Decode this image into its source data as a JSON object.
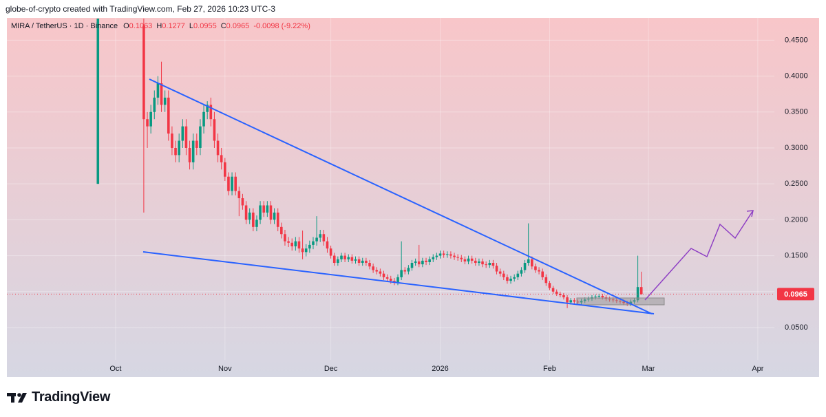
{
  "header": {
    "text": "globe-of-crypto created with TradingView.com, Feb 27, 2026 10:23 UTC-3"
  },
  "footer": {
    "brand": "TradingView"
  },
  "chart_data": {
    "type": "candlestick",
    "symbol": "MIRA / TetherUS · 1D · Binance",
    "legend_keys": [
      "O",
      "H",
      "L",
      "C"
    ],
    "change": "-0.0098 (-9.22%)",
    "up_color": "#089981",
    "down_color": "#f23645",
    "grid": true,
    "xlim": [
      -30.8,
      186.7
    ],
    "xticks": [
      {
        "value": 0,
        "label": "Oct"
      },
      {
        "value": 31,
        "label": "Nov"
      },
      {
        "value": 61,
        "label": "Dec"
      },
      {
        "value": 92,
        "label": "2026"
      },
      {
        "value": 123,
        "label": "Feb"
      },
      {
        "value": 151,
        "label": "Mar"
      },
      {
        "value": 182,
        "label": "Apr"
      }
    ],
    "ylim": [
      -0.019,
      0.481
    ],
    "yticks": [
      {
        "value": 0.05,
        "label": "0.0500"
      },
      {
        "value": 0.1,
        "label": "0.1000"
      },
      {
        "value": 0.15,
        "label": "0.1500"
      },
      {
        "value": 0.2,
        "label": "0.2000"
      },
      {
        "value": 0.25,
        "label": "0.2500"
      },
      {
        "value": 0.3,
        "label": "0.3000"
      },
      {
        "value": 0.35,
        "label": "0.3500"
      },
      {
        "value": 0.4,
        "label": "0.4000"
      },
      {
        "value": 0.45,
        "label": "0.4500"
      }
    ],
    "x": [
      -5,
      8,
      9,
      10,
      11,
      12,
      13,
      14,
      15,
      16,
      17,
      18,
      19,
      20,
      21,
      22,
      23,
      24,
      25,
      26,
      27,
      28,
      29,
      30,
      31,
      32,
      33,
      34,
      35,
      36,
      37,
      38,
      39,
      40,
      41,
      42,
      43,
      44,
      45,
      46,
      47,
      48,
      49,
      50,
      51,
      52,
      53,
      54,
      55,
      56,
      57,
      58,
      59,
      60,
      61,
      62,
      63,
      64,
      65,
      66,
      67,
      68,
      69,
      70,
      71,
      72,
      73,
      74,
      75,
      76,
      77,
      78,
      79,
      80,
      81,
      82,
      83,
      84,
      85,
      86,
      87,
      88,
      89,
      90,
      91,
      92,
      93,
      94,
      95,
      96,
      97,
      98,
      99,
      100,
      101,
      102,
      103,
      104,
      105,
      106,
      107,
      108,
      109,
      110,
      111,
      112,
      113,
      114,
      115,
      116,
      117,
      118,
      119,
      120,
      121,
      122,
      123,
      124,
      125,
      126,
      127,
      128,
      129,
      130,
      131,
      132,
      133,
      134,
      135,
      136,
      137,
      138,
      139,
      140,
      141,
      142,
      143,
      144,
      145,
      146,
      147,
      148,
      149
    ],
    "open": [
      0.25,
      0.47,
      0.34,
      0.33,
      0.35,
      0.37,
      0.39,
      0.36,
      0.37,
      0.32,
      0.3,
      0.29,
      0.31,
      0.33,
      0.3,
      0.28,
      0.31,
      0.3,
      0.33,
      0.35,
      0.36,
      0.34,
      0.31,
      0.29,
      0.28,
      0.26,
      0.24,
      0.26,
      0.24,
      0.23,
      0.22,
      0.2,
      0.21,
      0.19,
      0.2,
      0.22,
      0.21,
      0.22,
      0.2,
      0.21,
      0.19,
      0.18,
      0.17,
      0.168,
      0.163,
      0.17,
      0.16,
      0.155,
      0.16,
      0.165,
      0.17,
      0.175,
      0.18,
      0.17,
      0.16,
      0.15,
      0.14,
      0.145,
      0.15,
      0.145,
      0.148,
      0.143,
      0.145,
      0.14,
      0.143,
      0.14,
      0.135,
      0.13,
      0.128,
      0.125,
      0.12,
      0.118,
      0.115,
      0.113,
      0.12,
      0.13,
      0.128,
      0.133,
      0.14,
      0.142,
      0.138,
      0.143,
      0.141,
      0.145,
      0.148,
      0.15,
      0.153,
      0.151,
      0.152,
      0.15,
      0.148,
      0.147,
      0.145,
      0.142,
      0.146,
      0.143,
      0.14,
      0.142,
      0.138,
      0.137,
      0.14,
      0.136,
      0.128,
      0.125,
      0.12,
      0.115,
      0.118,
      0.12,
      0.125,
      0.13,
      0.14,
      0.145,
      0.135,
      0.13,
      0.128,
      0.12,
      0.112,
      0.105,
      0.1,
      0.097,
      0.095,
      0.092,
      0.085,
      0.088,
      0.086,
      0.085,
      0.087,
      0.089,
      0.09,
      0.092,
      0.093,
      0.094,
      0.092,
      0.09,
      0.089,
      0.088,
      0.087,
      0.086,
      0.084,
      0.083,
      0.086,
      0.088,
      0.1063
    ],
    "high": [
      0.48,
      0.48,
      0.35,
      0.36,
      0.38,
      0.4,
      0.42,
      0.38,
      0.38,
      0.33,
      0.31,
      0.32,
      0.34,
      0.34,
      0.31,
      0.32,
      0.32,
      0.34,
      0.36,
      0.365,
      0.37,
      0.35,
      0.32,
      0.3,
      0.286,
      0.266,
      0.266,
      0.266,
      0.246,
      0.236,
      0.226,
      0.216,
      0.216,
      0.206,
      0.226,
      0.226,
      0.226,
      0.226,
      0.216,
      0.216,
      0.196,
      0.186,
      0.176,
      0.174,
      0.176,
      0.176,
      0.185,
      0.166,
      0.171,
      0.176,
      0.205,
      0.186,
      0.186,
      0.176,
      0.164,
      0.154,
      0.149,
      0.154,
      0.154,
      0.152,
      0.152,
      0.149,
      0.149,
      0.147,
      0.147,
      0.144,
      0.139,
      0.134,
      0.132,
      0.129,
      0.124,
      0.122,
      0.119,
      0.124,
      0.17,
      0.134,
      0.137,
      0.144,
      0.146,
      0.165,
      0.147,
      0.147,
      0.149,
      0.152,
      0.154,
      0.157,
      0.157,
      0.156,
      0.156,
      0.154,
      0.152,
      0.151,
      0.149,
      0.15,
      0.15,
      0.147,
      0.146,
      0.146,
      0.142,
      0.144,
      0.144,
      0.14,
      0.132,
      0.129,
      0.124,
      0.122,
      0.124,
      0.129,
      0.134,
      0.144,
      0.195,
      0.149,
      0.139,
      0.134,
      0.132,
      0.124,
      0.115,
      0.108,
      0.103,
      0.1,
      0.098,
      0.095,
      0.091,
      0.091,
      0.089,
      0.09,
      0.092,
      0.093,
      0.095,
      0.096,
      0.097,
      0.097,
      0.095,
      0.093,
      0.092,
      0.091,
      0.09,
      0.089,
      0.087,
      0.089,
      0.091,
      0.15,
      0.1277
    ],
    "low": [
      0.25,
      0.21,
      0.3,
      0.32,
      0.34,
      0.36,
      0.35,
      0.35,
      0.31,
      0.29,
      0.28,
      0.28,
      0.3,
      0.29,
      0.27,
      0.27,
      0.29,
      0.29,
      0.32,
      0.34,
      0.33,
      0.3,
      0.28,
      0.27,
      0.254,
      0.234,
      0.234,
      0.234,
      0.205,
      0.214,
      0.194,
      0.194,
      0.184,
      0.184,
      0.194,
      0.204,
      0.204,
      0.194,
      0.194,
      0.184,
      0.174,
      0.164,
      0.162,
      0.157,
      0.157,
      0.154,
      0.145,
      0.149,
      0.154,
      0.159,
      0.164,
      0.169,
      0.164,
      0.154,
      0.146,
      0.136,
      0.136,
      0.141,
      0.141,
      0.141,
      0.139,
      0.139,
      0.136,
      0.136,
      0.136,
      0.131,
      0.126,
      0.124,
      0.121,
      0.116,
      0.114,
      0.111,
      0.109,
      0.109,
      0.116,
      0.124,
      0.124,
      0.129,
      0.136,
      0.134,
      0.134,
      0.137,
      0.137,
      0.141,
      0.144,
      0.146,
      0.147,
      0.147,
      0.146,
      0.144,
      0.143,
      0.141,
      0.138,
      0.138,
      0.139,
      0.136,
      0.136,
      0.134,
      0.133,
      0.133,
      0.132,
      0.124,
      0.121,
      0.116,
      0.111,
      0.111,
      0.114,
      0.116,
      0.121,
      0.126,
      0.136,
      0.131,
      0.126,
      0.124,
      0.116,
      0.108,
      0.102,
      0.097,
      0.094,
      0.092,
      0.089,
      0.077,
      0.082,
      0.083,
      0.082,
      0.082,
      0.084,
      0.086,
      0.087,
      0.089,
      0.09,
      0.089,
      0.087,
      0.086,
      0.085,
      0.084,
      0.083,
      0.081,
      0.08,
      0.08,
      0.083,
      0.085,
      0.0955
    ],
    "close": [
      0.48,
      0.34,
      0.33,
      0.35,
      0.37,
      0.39,
      0.36,
      0.37,
      0.32,
      0.3,
      0.29,
      0.31,
      0.33,
      0.3,
      0.28,
      0.31,
      0.3,
      0.33,
      0.35,
      0.36,
      0.34,
      0.31,
      0.29,
      0.28,
      0.26,
      0.24,
      0.26,
      0.24,
      0.23,
      0.22,
      0.2,
      0.21,
      0.19,
      0.2,
      0.22,
      0.21,
      0.22,
      0.2,
      0.21,
      0.19,
      0.18,
      0.17,
      0.168,
      0.163,
      0.17,
      0.16,
      0.155,
      0.16,
      0.165,
      0.17,
      0.175,
      0.18,
      0.17,
      0.16,
      0.15,
      0.14,
      0.145,
      0.15,
      0.145,
      0.148,
      0.143,
      0.145,
      0.14,
      0.143,
      0.14,
      0.135,
      0.13,
      0.128,
      0.125,
      0.12,
      0.118,
      0.115,
      0.113,
      0.12,
      0.13,
      0.128,
      0.133,
      0.14,
      0.142,
      0.138,
      0.143,
      0.141,
      0.145,
      0.148,
      0.15,
      0.153,
      0.151,
      0.152,
      0.15,
      0.148,
      0.147,
      0.145,
      0.142,
      0.146,
      0.143,
      0.14,
      0.142,
      0.138,
      0.137,
      0.14,
      0.136,
      0.128,
      0.125,
      0.12,
      0.115,
      0.118,
      0.12,
      0.125,
      0.13,
      0.14,
      0.145,
      0.135,
      0.13,
      0.128,
      0.12,
      0.112,
      0.105,
      0.1,
      0.097,
      0.095,
      0.092,
      0.085,
      0.088,
      0.086,
      0.085,
      0.087,
      0.089,
      0.09,
      0.092,
      0.093,
      0.094,
      0.092,
      0.09,
      0.089,
      0.088,
      0.087,
      0.086,
      0.084,
      0.083,
      0.086,
      0.088,
      0.1063,
      0.0965
    ]
  }
}
